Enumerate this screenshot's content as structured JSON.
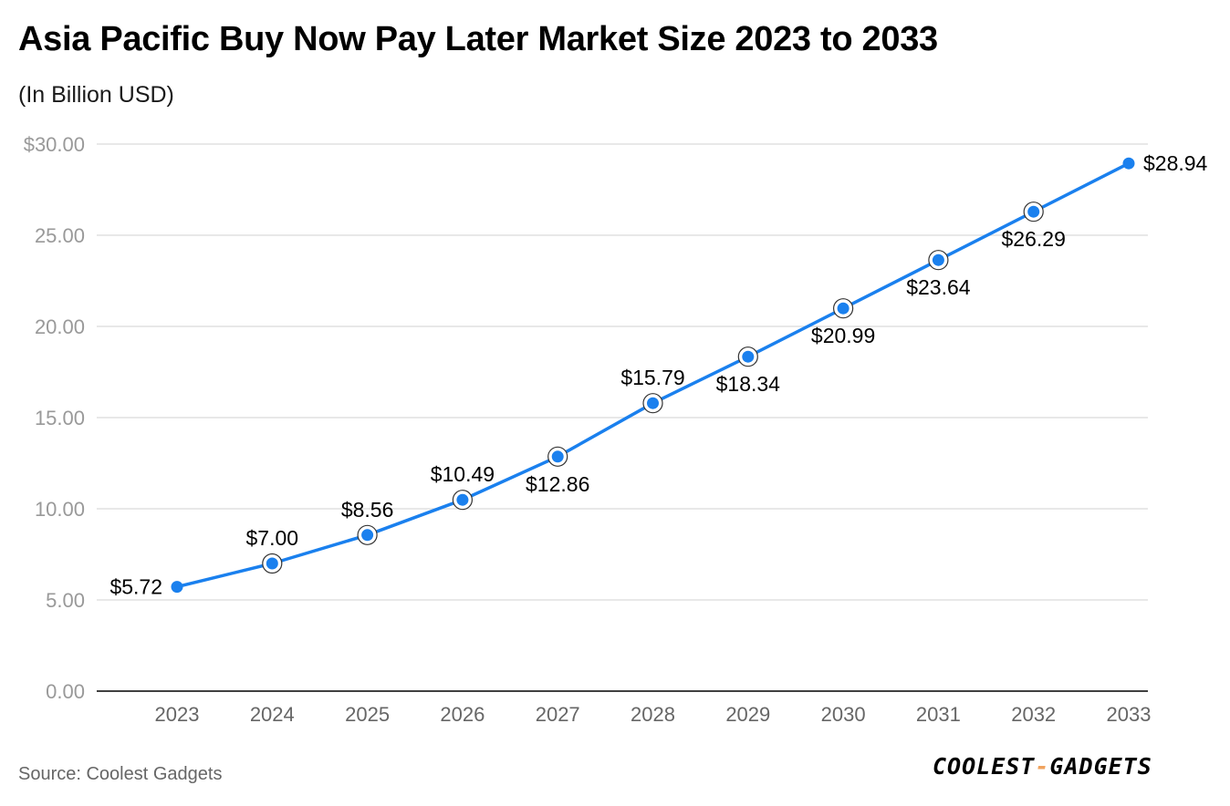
{
  "title": "Asia Pacific Buy Now Pay Later Market Size 2023 to 2033",
  "subtitle": "(In Billion USD)",
  "source": "Source: Coolest Gadgets",
  "logo": {
    "part1": "COOLEST",
    "separator": "-",
    "part2": "GADGETS",
    "accent_color": "#f0a35e"
  },
  "colors": {
    "line": "#1a80ee",
    "marker": "#1a80ee",
    "grid": "#e0e0e0",
    "axis": "#000000",
    "tick_label": "#999999",
    "x_tick_label": "#666666",
    "data_label": "#000000"
  },
  "chart_data": {
    "type": "line",
    "categories": [
      "2023",
      "2024",
      "2025",
      "2026",
      "2027",
      "2028",
      "2029",
      "2030",
      "2031",
      "2032",
      "2033"
    ],
    "series": [
      {
        "values": [
          5.72,
          7.0,
          8.56,
          10.49,
          12.86,
          15.79,
          18.34,
          20.99,
          23.64,
          26.29,
          28.94
        ],
        "data_labels": [
          "$5.72",
          "$7.00",
          "$8.56",
          "$10.49",
          "$12.86",
          "$15.79",
          "$18.34",
          "$20.99",
          "$23.64",
          "$26.29",
          "$28.94"
        ]
      }
    ],
    "y_ticks": [
      0,
      5,
      10,
      15,
      20,
      25,
      30
    ],
    "y_tick_labels": [
      "0.00",
      "5.00",
      "10.00",
      "15.00",
      "20.00",
      "25.00",
      "$30.00"
    ],
    "ylim": [
      0,
      30
    ],
    "grid": true,
    "legend": "none"
  }
}
